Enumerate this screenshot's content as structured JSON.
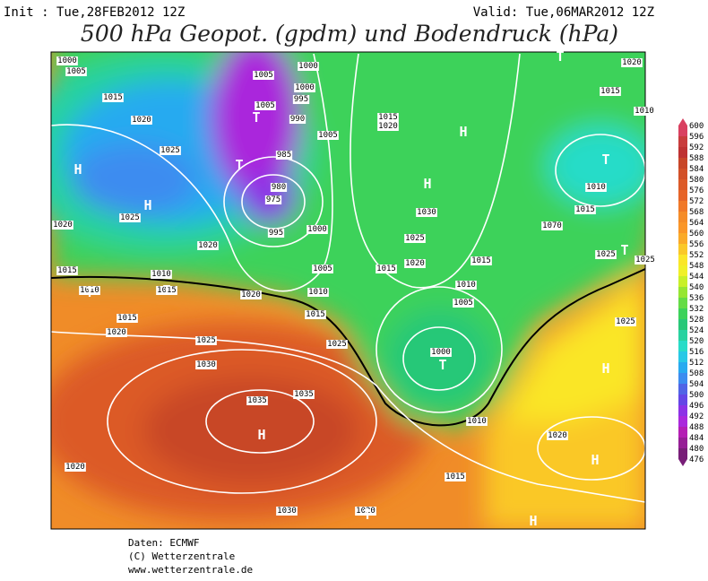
{
  "header": {
    "init": "Init : Tue,28FEB2012 12Z",
    "valid": "Valid: Tue,06MAR2012 12Z",
    "title": "500 hPa Geopot. (gpdm) und Bodendruck (hPa)"
  },
  "colorbar": {
    "levels": [
      600,
      596,
      592,
      588,
      584,
      580,
      576,
      572,
      568,
      564,
      560,
      556,
      552,
      548,
      544,
      540,
      536,
      532,
      528,
      524,
      520,
      516,
      512,
      508,
      504,
      500,
      496,
      492,
      488,
      484,
      480,
      476
    ],
    "colors": [
      "#d94060",
      "#c83c3c",
      "#be3232",
      "#c84628",
      "#d25028",
      "#dc5a28",
      "#e66428",
      "#f07828",
      "#f58c28",
      "#fa9628",
      "#faaa28",
      "#fac828",
      "#fae628",
      "#f0f028",
      "#c8f028",
      "#96e632",
      "#64dc46",
      "#3cd25a",
      "#28c878",
      "#28d2a0",
      "#28dcc8",
      "#28c8e6",
      "#28aaf0",
      "#3c8cf0",
      "#5064e6",
      "#6446e6",
      "#8c32e6",
      "#aa28dc",
      "#b41eb4",
      "#961e96",
      "#781e78"
    ]
  },
  "map": {
    "isobar_labels": [
      "1000",
      "1005",
      "1015",
      "1020",
      "1025",
      "1025",
      "1020",
      "1020",
      "1015",
      "1010",
      "1010",
      "1015",
      "1020",
      "1015",
      "1020",
      "1025",
      "1030",
      "1035",
      "1035",
      "1020",
      "1030",
      "1020",
      "1015",
      "1020",
      "1010",
      "1000",
      "1005",
      "1010",
      "1015",
      "1020",
      "1025",
      "1030",
      "1015",
      "1005",
      "1010",
      "1015",
      "1025",
      "1005",
      "1000",
      "995",
      "980",
      "975",
      "985",
      "995",
      "990",
      "1000",
      "1005",
      "1005",
      "1000",
      "1015",
      "1020",
      "1070",
      "1015",
      "1010",
      "1015",
      "1020",
      "1010",
      "1025",
      "1025",
      "1025"
    ],
    "centers": [
      "H",
      "H",
      "T",
      "T",
      "H",
      "T",
      "T",
      "H",
      "H",
      "T",
      "H",
      "H",
      "H",
      "T",
      "T",
      "T",
      "T"
    ]
  },
  "footer": {
    "source": "Daten: ECMWF",
    "copyright": "(C) Wetterzentrale",
    "url": "www.wetterzentrale.de"
  }
}
